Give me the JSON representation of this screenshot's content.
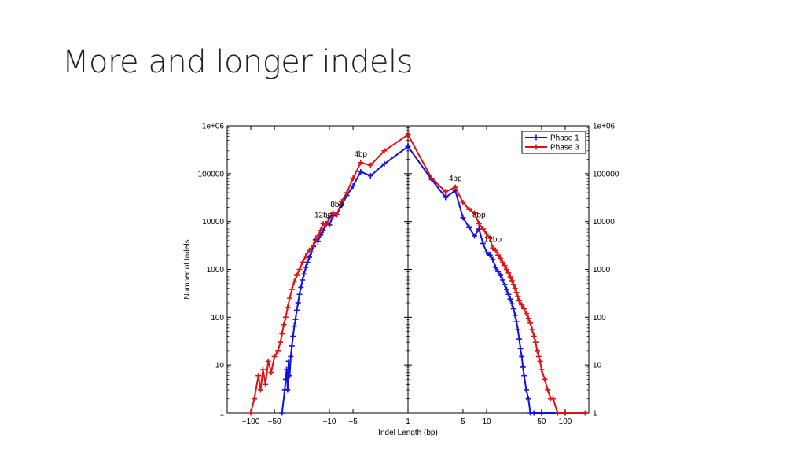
{
  "slide": {
    "title": "More and longer indels"
  },
  "chart_data": {
    "type": "line",
    "xlabel": "Indel Length (bp)",
    "ylabel": "Number of Indels",
    "y_scale": "log",
    "x_scale": "symlog (log scale on each side of 1)",
    "ylim": [
      1,
      1000000
    ],
    "y_ticks": [
      1,
      10,
      100,
      1000,
      10000,
      100000,
      1000000
    ],
    "y_tick_labels": [
      "1",
      "10",
      "100",
      "1000",
      "10000",
      "100000",
      "1e+06"
    ],
    "x_ticks_left": [
      -100,
      -50,
      -10,
      -5
    ],
    "x_tick_labels_left": [
      "−100",
      "−50",
      "−10",
      "−5"
    ],
    "x_ticks_right": [
      1,
      5,
      10,
      50,
      100
    ],
    "x_tick_labels_right": [
      "1",
      "5",
      "10",
      "50",
      "100"
    ],
    "legend_position": "top-right",
    "annotations": [
      {
        "text": "4bp",
        "side": "left",
        "x": -4,
        "y": 170000
      },
      {
        "text": "8bp",
        "side": "left",
        "x": -8,
        "y": 15000
      },
      {
        "text": "12bp",
        "side": "left",
        "x": -12,
        "y": 9000
      },
      {
        "text": "4bp",
        "side": "right",
        "x": 4,
        "y": 52000
      },
      {
        "text": "8bp",
        "side": "right",
        "x": 8,
        "y": 9000
      },
      {
        "text": "12bp",
        "side": "right",
        "x": 12,
        "y": 2800
      }
    ],
    "series": [
      {
        "name": "Phase 1",
        "color": "#1010e0",
        "deletions": [
          [
            -40,
            1
          ],
          [
            -37,
            3
          ],
          [
            -36,
            5
          ],
          [
            -35,
            8
          ],
          [
            -34,
            3
          ],
          [
            -33,
            12
          ],
          [
            -32,
            6
          ],
          [
            -31,
            15
          ],
          [
            -30,
            25
          ],
          [
            -29,
            40
          ],
          [
            -28,
            65
          ],
          [
            -27,
            90
          ],
          [
            -26,
            140
          ],
          [
            -25,
            200
          ],
          [
            -24,
            300
          ],
          [
            -23,
            420
          ],
          [
            -22,
            600
          ],
          [
            -21,
            800
          ],
          [
            -20,
            1100
          ],
          [
            -19,
            1400
          ],
          [
            -18,
            1800
          ],
          [
            -17,
            2300
          ],
          [
            -16,
            3000
          ],
          [
            -15,
            4200
          ],
          [
            -14,
            3800
          ],
          [
            -13,
            5200
          ],
          [
            -12,
            6500
          ],
          [
            -11,
            9000
          ],
          [
            -10,
            8500
          ],
          [
            -9,
            13000
          ],
          [
            -8,
            14000
          ],
          [
            -7,
            22000
          ],
          [
            -6,
            35000
          ],
          [
            -5,
            55000
          ],
          [
            -4,
            110000
          ],
          [
            -3,
            90000
          ],
          [
            -2,
            160000
          ],
          [
            -1,
            370000
          ]
        ],
        "insertions": [
          [
            1,
            370000
          ],
          [
            2,
            75000
          ],
          [
            3,
            32000
          ],
          [
            4,
            44000
          ],
          [
            5,
            12000
          ],
          [
            6,
            7500
          ],
          [
            7,
            5000
          ],
          [
            8,
            7000
          ],
          [
            9,
            3500
          ],
          [
            10,
            2300
          ],
          [
            11,
            2000
          ],
          [
            12,
            1600
          ],
          [
            13,
            1100
          ],
          [
            14,
            900
          ],
          [
            15,
            750
          ],
          [
            16,
            600
          ],
          [
            17,
            480
          ],
          [
            18,
            380
          ],
          [
            19,
            300
          ],
          [
            20,
            240
          ],
          [
            21,
            190
          ],
          [
            22,
            150
          ],
          [
            23,
            110
          ],
          [
            24,
            80
          ],
          [
            25,
            55
          ],
          [
            26,
            35
          ],
          [
            27,
            22
          ],
          [
            28,
            15
          ],
          [
            29,
            9
          ],
          [
            30,
            6
          ],
          [
            32,
            3
          ],
          [
            34,
            2
          ],
          [
            36,
            1
          ],
          [
            40,
            1
          ],
          [
            50,
            1
          ],
          [
            100,
            1
          ],
          [
            180,
            1
          ]
        ]
      },
      {
        "name": "Phase 3",
        "color": "#e01010",
        "deletions": [
          [
            -100,
            1
          ],
          [
            -90,
            2
          ],
          [
            -80,
            6
          ],
          [
            -75,
            3
          ],
          [
            -70,
            8
          ],
          [
            -65,
            4
          ],
          [
            -60,
            12
          ],
          [
            -55,
            7
          ],
          [
            -50,
            15
          ],
          [
            -45,
            20
          ],
          [
            -42,
            30
          ],
          [
            -40,
            45
          ],
          [
            -38,
            70
          ],
          [
            -36,
            100
          ],
          [
            -34,
            160
          ],
          [
            -32,
            250
          ],
          [
            -30,
            380
          ],
          [
            -28,
            550
          ],
          [
            -26,
            750
          ],
          [
            -24,
            1000
          ],
          [
            -22,
            1400
          ],
          [
            -20,
            1900
          ],
          [
            -18,
            2500
          ],
          [
            -16,
            3200
          ],
          [
            -15,
            4000
          ],
          [
            -14,
            5000
          ],
          [
            -13,
            6500
          ],
          [
            -12,
            9000
          ],
          [
            -11,
            8500
          ],
          [
            -10,
            12000
          ],
          [
            -9,
            15000
          ],
          [
            -8,
            14000
          ],
          [
            -7,
            26000
          ],
          [
            -6,
            40000
          ],
          [
            -5,
            80000
          ],
          [
            -4,
            170000
          ],
          [
            -3,
            150000
          ],
          [
            -2,
            300000
          ],
          [
            -1,
            650000
          ]
        ],
        "insertions": [
          [
            1,
            650000
          ],
          [
            2,
            80000
          ],
          [
            3,
            42000
          ],
          [
            4,
            52000
          ],
          [
            5,
            25000
          ],
          [
            6,
            18000
          ],
          [
            7,
            15000
          ],
          [
            8,
            9000
          ],
          [
            9,
            7000
          ],
          [
            10,
            5500
          ],
          [
            11,
            4500
          ],
          [
            12,
            2800
          ],
          [
            13,
            2500
          ],
          [
            14,
            2000
          ],
          [
            15,
            1700
          ],
          [
            16,
            1400
          ],
          [
            17,
            1200
          ],
          [
            18,
            1000
          ],
          [
            19,
            850
          ],
          [
            20,
            700
          ],
          [
            21,
            580
          ],
          [
            22,
            480
          ],
          [
            23,
            400
          ],
          [
            24,
            330
          ],
          [
            25,
            270
          ],
          [
            26,
            220
          ],
          [
            28,
            180
          ],
          [
            30,
            150
          ],
          [
            32,
            120
          ],
          [
            34,
            95
          ],
          [
            36,
            75
          ],
          [
            38,
            55
          ],
          [
            40,
            40
          ],
          [
            42,
            30
          ],
          [
            44,
            20
          ],
          [
            46,
            15
          ],
          [
            48,
            12
          ],
          [
            50,
            8
          ],
          [
            55,
            5
          ],
          [
            60,
            3
          ],
          [
            65,
            2
          ],
          [
            70,
            2
          ],
          [
            80,
            1
          ],
          [
            100,
            1
          ],
          [
            180,
            1
          ]
        ]
      }
    ]
  }
}
